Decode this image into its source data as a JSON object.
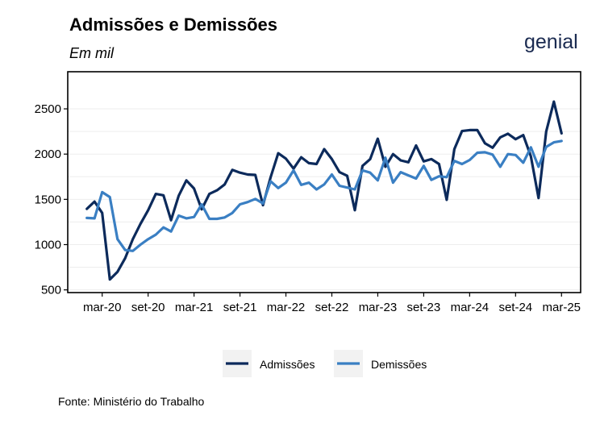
{
  "title": "Admissões e Demissões",
  "subtitle": "Em mil",
  "logo": "genial",
  "source": "Fonte: Ministério do Trabalho",
  "colors": {
    "admissoes": "#0c2a5b",
    "demissoes": "#3a7fc3"
  },
  "chart_data": {
    "type": "line",
    "title": "Admissões e Demissões",
    "subtitle": "Em mil",
    "xlabel": "",
    "ylabel": "",
    "ylim": [
      470,
      2910
    ],
    "y_ticks": [
      500,
      1000,
      1500,
      2000,
      2500
    ],
    "x_ticks": [
      "mar-20",
      "set-20",
      "mar-21",
      "set-21",
      "mar-22",
      "set-22",
      "mar-23",
      "set-23",
      "mar-24",
      "set-24",
      "mar-25"
    ],
    "x_tick_index": [
      2,
      8,
      14,
      20,
      26,
      32,
      38,
      44,
      50,
      56,
      62
    ],
    "xlim_index": [
      -2.5,
      64.5
    ],
    "grid": true,
    "legend_position": "bottom",
    "x": [
      "jan-20",
      "fev-20",
      "mar-20",
      "abr-20",
      "mai-20",
      "jun-20",
      "jul-20",
      "ago-20",
      "set-20",
      "out-20",
      "nov-20",
      "dez-20",
      "jan-21",
      "fev-21",
      "mar-21",
      "abr-21",
      "mai-21",
      "jun-21",
      "jul-21",
      "ago-21",
      "set-21",
      "out-21",
      "nov-21",
      "dez-21",
      "jan-22",
      "fev-22",
      "mar-22",
      "abr-22",
      "mai-22",
      "jun-22",
      "jul-22",
      "ago-22",
      "set-22",
      "out-22",
      "nov-22",
      "dez-22",
      "jan-23",
      "fev-23",
      "mar-23",
      "abr-23",
      "mai-23",
      "jun-23",
      "jul-23",
      "ago-23",
      "set-23",
      "out-23",
      "nov-23",
      "dez-23",
      "jan-24",
      "fev-24",
      "mar-24",
      "abr-24",
      "mai-24",
      "jun-24",
      "jul-24",
      "ago-24",
      "set-24",
      "out-24",
      "nov-24",
      "dez-24",
      "jan-25",
      "fev-25",
      "mar-25"
    ],
    "series": [
      {
        "name": "Admissões",
        "values": [
          1395,
          1475,
          1350,
          615,
          700,
          850,
          1060,
          1230,
          1380,
          1560,
          1545,
          1270,
          1540,
          1710,
          1620,
          1390,
          1560,
          1600,
          1665,
          1825,
          1795,
          1775,
          1770,
          1435,
          1745,
          2010,
          1950,
          1840,
          1965,
          1900,
          1890,
          2055,
          1945,
          1800,
          1760,
          1380,
          1870,
          1945,
          2170,
          1860,
          2000,
          1930,
          1910,
          2095,
          1920,
          1945,
          1890,
          1495,
          2055,
          2255,
          2265,
          2265,
          2120,
          2070,
          2185,
          2225,
          2165,
          2210,
          1975,
          1515,
          2250,
          2580,
          2230
        ]
      },
      {
        "name": "Demissões",
        "values": [
          1295,
          1290,
          1580,
          1525,
          1060,
          940,
          930,
          1000,
          1060,
          1110,
          1190,
          1145,
          1320,
          1290,
          1305,
          1445,
          1285,
          1285,
          1300,
          1350,
          1445,
          1470,
          1505,
          1455,
          1700,
          1625,
          1685,
          1820,
          1660,
          1685,
          1610,
          1665,
          1775,
          1650,
          1630,
          1610,
          1820,
          1795,
          1710,
          1960,
          1685,
          1800,
          1765,
          1730,
          1870,
          1715,
          1755,
          1745,
          1925,
          1890,
          1935,
          2015,
          2020,
          1995,
          1860,
          2000,
          1990,
          1905,
          2075,
          1860,
          2080,
          2130,
          2145
        ]
      }
    ]
  }
}
